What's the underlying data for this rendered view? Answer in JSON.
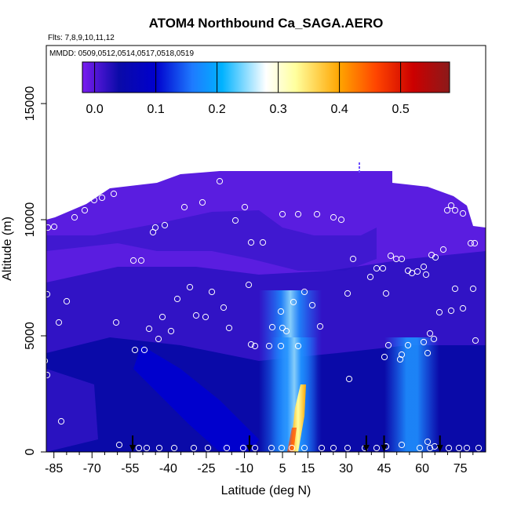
{
  "chart_data": {
    "type": "heatmap",
    "title": "ATOM4 Northbound Ca_SAGA.AERO",
    "annotations": [
      "Flts: 7,8,9,10,11,12",
      "MMDD: 0509,0512,0514,0517,0518,0519"
    ],
    "xlabel": "Latitude (deg N)",
    "ylabel": "Altitude (m)",
    "xlim": [
      -88,
      85
    ],
    "ylim": [
      0,
      17500
    ],
    "x_ticks": [
      -85,
      -70,
      -55,
      -40,
      -25,
      -10,
      5,
      15,
      30,
      45,
      60,
      75
    ],
    "y_ticks": [
      0,
      5000,
      10000,
      15000
    ],
    "colorbar": {
      "range": [
        -0.02,
        0.58
      ],
      "ticks": [
        0.0,
        0.1,
        0.2,
        0.3,
        0.4,
        0.5
      ],
      "colors": [
        "#7a1df0",
        "#0a0aa8",
        "#0000cd",
        "#1e7bff",
        "#00b2ff",
        "#ffffff",
        "#ffff9e",
        "#ffa500",
        "#ff4500",
        "#cc0000",
        "#8b1a1a"
      ]
    },
    "profile_arrows_lat": [
      -54,
      -8,
      38,
      45,
      67
    ],
    "grid": false,
    "legend": "colorbar-top"
  }
}
